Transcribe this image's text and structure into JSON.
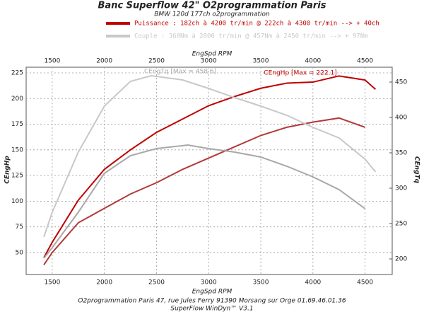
{
  "chart_data": {
    "type": "line",
    "title": "Banc Superflow 42\" O2programmation Paris",
    "subtitle": "BMW 120d 177ch o2programmation",
    "x_label": "EngSpd RPM",
    "y_label": "CEngHp",
    "y2_label": "CEngTq",
    "annotations": [
      "CEngTq [Max = 458.6]",
      "CEngHp [Max = 222.1]"
    ],
    "footer": [
      "O2programmation Paris 47, rue Jules Ferry 91390 Morsang sur Orge 01.69.46.01.36",
      "SuperFlow WinDyn™ V3.1"
    ],
    "xlim": [
      1250,
      4760
    ],
    "xticks": [
      1500,
      2000,
      2500,
      3000,
      3500,
      4000,
      4500
    ],
    "ylim": [
      28.6,
      230.5
    ],
    "yticks": [
      50,
      75,
      100,
      125,
      150,
      175,
      200,
      225
    ],
    "y2lim": [
      178,
      471
    ],
    "y2ticks": [
      200,
      250,
      300,
      350,
      400,
      450
    ],
    "grid": true,
    "series": [
      {
        "name": "Puissance : 182ch à 4200 tr/min @ 222ch à 4300 tr/min --> + 40ch",
        "color": "#c00000",
        "x": [
          1420,
          1500,
          1750,
          2000,
          2250,
          2500,
          2750,
          3000,
          3250,
          3500,
          3750,
          4000,
          4250,
          4500,
          4600
        ],
        "values": [
          45,
          60,
          101,
          131,
          150,
          167,
          180,
          193,
          202,
          210,
          215,
          216,
          222,
          218,
          209
        ]
      },
      {
        "color": "#b23a3a",
        "x": [
          1420,
          1500,
          1750,
          2000,
          2250,
          2500,
          2750,
          3000,
          3250,
          3500,
          3750,
          4000,
          4250,
          4500
        ],
        "values": [
          38,
          50,
          79,
          93,
          107,
          118,
          131,
          142,
          153,
          164,
          172,
          177,
          181,
          172
        ]
      },
      {
        "name": "Couple : 360Nm à 2800 tr/min @ 457Nm à 2450 tr/min --> + 97Nm",
        "color": "#c8c8c8",
        "axis": "y2",
        "x": [
          1420,
          1500,
          1750,
          2000,
          2250,
          2450,
          2750,
          3000,
          3250,
          3500,
          3750,
          4000,
          4250,
          4500,
          4600
        ],
        "values": [
          231,
          266,
          351,
          416,
          451,
          459,
          453,
          441,
          428,
          416,
          403,
          386,
          371,
          341,
          323
        ]
      },
      {
        "color": "#a8a8a8",
        "axis": "y2",
        "x": [
          1420,
          1500,
          1750,
          2000,
          2250,
          2500,
          2800,
          3000,
          3250,
          3500,
          3750,
          4000,
          4250,
          4500
        ],
        "values": [
          201,
          216,
          266,
          321,
          346,
          356,
          361,
          356,
          351,
          344,
          331,
          316,
          298,
          271
        ]
      }
    ]
  }
}
